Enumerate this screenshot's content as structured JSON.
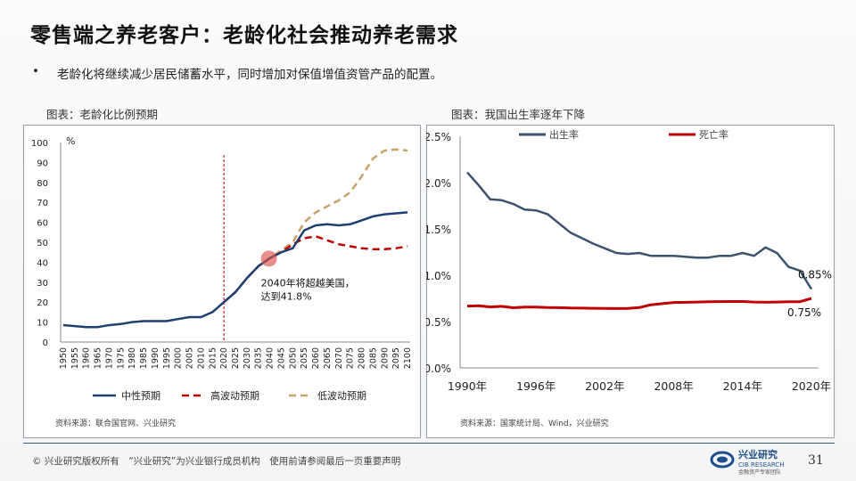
{
  "title": "零售端之养老客户：老龄化社会推动养老需求",
  "bullet": "老龄化将继续减少居民储蓄水平，同时增加对保值增值资管产品的配置。",
  "footer": "© 兴业研究版权所有　“兴业研究”为兴业银行成员机构　使用前请参阅最后一页重要声明",
  "page_number": "31",
  "logo": {
    "name": "兴业研究",
    "sub": "CIB RESEARCH",
    "tag": "金融资产专家团队"
  },
  "chart_data": [
    {
      "type": "line",
      "caption": "图表：老龄化比例预期",
      "source": "资料来源：联合国官网、兴业研究",
      "unit": "%",
      "ylim": [
        0,
        100
      ],
      "y_ticks": [
        "0",
        "10",
        "20",
        "30",
        "40",
        "50",
        "60",
        "70",
        "80",
        "90",
        "100"
      ],
      "x": [
        1950,
        1955,
        1960,
        1965,
        1970,
        1975,
        1980,
        1985,
        1990,
        1995,
        2000,
        2005,
        2010,
        2015,
        2020,
        2025,
        2030,
        2035,
        2040,
        2045,
        2050,
        2055,
        2060,
        2065,
        2070,
        2075,
        2080,
        2085,
        2090,
        2095,
        2100
      ],
      "x_labels": [
        "1950",
        "1955",
        "1960",
        "1965",
        "1970",
        "1975",
        "1980",
        "1985",
        "1990",
        "1995",
        "2000",
        "2005",
        "2010",
        "2015",
        "2020",
        "2025",
        "2030",
        "2035",
        "2040",
        "2045",
        "2050",
        "2055",
        "2060",
        "2065",
        "2070",
        "2075",
        "2080",
        "2085",
        "2090",
        "2095",
        "2100"
      ],
      "vline_x": 2020,
      "annotation": {
        "x": 2040,
        "y": 41.8,
        "line1": "2040年将超越美国，",
        "line2": "达到41.8%"
      },
      "series": [
        {
          "name": "中性预期",
          "color": "#1f3f73",
          "dash": "solid",
          "values": [
            8.5,
            8,
            7.5,
            7.5,
            8.5,
            9,
            10,
            10.5,
            10.5,
            10.5,
            11.5,
            12.5,
            12.5,
            15,
            20,
            25,
            32,
            38,
            42,
            45,
            47,
            56,
            58.5,
            59,
            58.5,
            59,
            61,
            63,
            64,
            64.5,
            65
          ]
        },
        {
          "name": "高波动预期",
          "color": "#c00000",
          "dash": "dash",
          "values": [
            null,
            null,
            null,
            null,
            null,
            null,
            null,
            null,
            null,
            null,
            null,
            null,
            null,
            null,
            20,
            25,
            32,
            38,
            42,
            45,
            49,
            52,
            53,
            51,
            49,
            48,
            47,
            46.5,
            46.5,
            47,
            48
          ]
        },
        {
          "name": "低波动预期",
          "color": "#c8a26a",
          "dash": "dash",
          "values": [
            null,
            null,
            null,
            null,
            null,
            null,
            null,
            null,
            null,
            null,
            null,
            null,
            null,
            null,
            20,
            25,
            32,
            38,
            42,
            46,
            50,
            60,
            65,
            68,
            71,
            75,
            83,
            92,
            96,
            96.5,
            96
          ]
        }
      ]
    },
    {
      "type": "line",
      "caption": "图表：我国出生率逐年下降",
      "source": "资料来源：国家统计局、Wind，兴业研究",
      "ylim": [
        0,
        2.5
      ],
      "y_ticks": [
        "0.0%",
        "0.5%",
        "1.0%",
        "1.5%",
        "2.0%",
        "2.5%"
      ],
      "x_ticks": [
        1990,
        1996,
        2002,
        2008,
        2014,
        2020
      ],
      "x_tick_labels": [
        "1990年",
        "1996年",
        "2002年",
        "2008年",
        "2014年",
        "2020年"
      ],
      "x": [
        1990,
        1991,
        1992,
        1993,
        1994,
        1995,
        1996,
        1997,
        1998,
        1999,
        2000,
        2001,
        2002,
        2003,
        2004,
        2005,
        2006,
        2007,
        2008,
        2009,
        2010,
        2011,
        2012,
        2013,
        2014,
        2015,
        2016,
        2017,
        2018,
        2019,
        2020
      ],
      "end_labels": {
        "birth": "0.85%",
        "death": "0.75%"
      },
      "series": [
        {
          "name": "出生率",
          "color": "#3e536e",
          "values": [
            2.11,
            1.97,
            1.82,
            1.81,
            1.77,
            1.71,
            1.7,
            1.66,
            1.56,
            1.46,
            1.4,
            1.34,
            1.29,
            1.24,
            1.23,
            1.24,
            1.21,
            1.21,
            1.21,
            1.2,
            1.19,
            1.19,
            1.21,
            1.21,
            1.24,
            1.21,
            1.3,
            1.24,
            1.09,
            1.05,
            0.85
          ]
        },
        {
          "name": "死亡率",
          "color": "#c00000",
          "values": [
            0.667,
            0.67,
            0.658,
            0.664,
            0.649,
            0.657,
            0.656,
            0.651,
            0.65,
            0.646,
            0.645,
            0.643,
            0.641,
            0.64,
            0.642,
            0.651,
            0.681,
            0.693,
            0.706,
            0.708,
            0.711,
            0.714,
            0.715,
            0.716,
            0.716,
            0.711,
            0.709,
            0.711,
            0.713,
            0.714,
            0.75
          ]
        }
      ]
    }
  ]
}
